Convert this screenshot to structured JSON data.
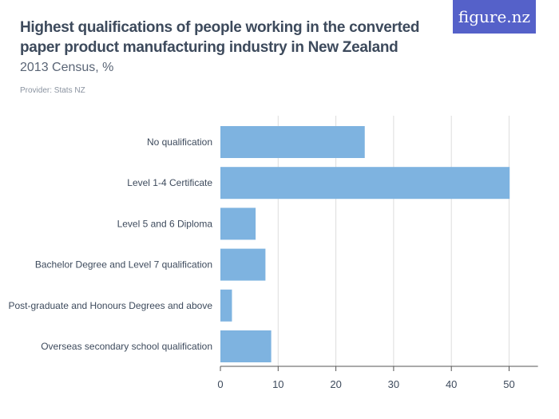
{
  "header": {
    "title": "Highest qualifications of people working in the converted paper product manufacturing industry in New Zealand",
    "subtitle": "2013 Census, %",
    "provider": "Provider: Stats NZ",
    "logo": "figure.nz"
  },
  "colors": {
    "bar": "#7eb3e0",
    "logo_bg": "#5561c9",
    "grid": "#dddddd"
  },
  "chart_data": {
    "type": "bar",
    "orientation": "horizontal",
    "categories": [
      "No qualification",
      "Level 1-4 Certificate",
      "Level 5 and 6 Diploma",
      "Bachelor Degree and Level 7 qualification",
      "Post-graduate and Honours Degrees and above",
      "Overseas secondary school qualification"
    ],
    "values": [
      25.0,
      50.1,
      6.1,
      7.8,
      2.0,
      8.8
    ],
    "xlim": [
      0,
      55
    ],
    "xticks": [
      0,
      10,
      20,
      30,
      40,
      50
    ],
    "grid": true,
    "xlabel": "",
    "ylabel": ""
  }
}
